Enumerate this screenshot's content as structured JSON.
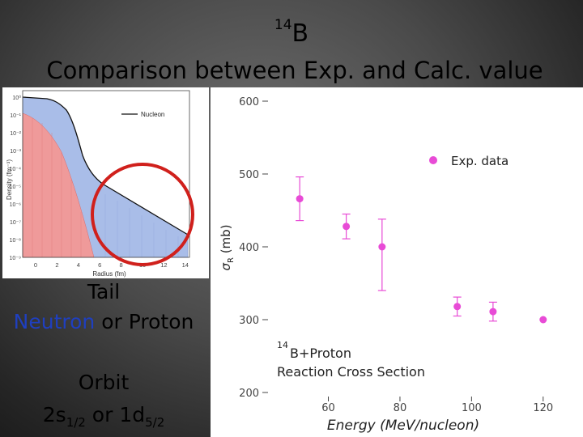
{
  "slide": {
    "isotope_mass": "14",
    "isotope_symbol": "B",
    "title": "Comparison between Exp. and Calc. value",
    "tail_title": "Tail",
    "tail_neutron": "Neutron",
    "tail_or": " or ",
    "tail_proton": "Proton",
    "orbit_title": "Orbit",
    "orbit_2s_main": "2s",
    "orbit_2s_sub": "1/2",
    "orbit_or": " or ",
    "orbit_1d_main": "1d",
    "orbit_1d_sub": "5/2"
  },
  "density_plot": {
    "xlabel": "Radius (fm)",
    "ylabel": "Density (fm⁻³)",
    "legend": "Nucleon",
    "x_ticks": [
      "0",
      "2",
      "4",
      "6",
      "8",
      "10",
      "12",
      "14"
    ],
    "y_ticks": [
      "10⁰",
      "10⁻¹",
      "10⁻²",
      "10⁻³",
      "10⁻⁴",
      "10⁻⁵",
      "10⁻⁶",
      "10⁻⁷",
      "10⁻⁸",
      "10⁻⁹"
    ],
    "fill_colors": {
      "nucleon": "#a9bde8",
      "core": "#ef9a9a"
    },
    "highlight_color": "#d0201c"
  },
  "chart_data": {
    "type": "scatter",
    "ylabel_symbol": "σ",
    "ylabel_sub": "R",
    "ylabel_unit": " (mb)",
    "xlabel": "Energy (MeV/nucleon)",
    "ylim": [
      200,
      600
    ],
    "xlim": [
      35,
      130
    ],
    "x_ticks": [
      60,
      80,
      100,
      120
    ],
    "y_ticks": [
      200,
      300,
      400,
      500,
      600
    ],
    "legend": "Exp. data",
    "annotation_mass": "14",
    "annotation_line1": "B+Proton",
    "annotation_line2": "Reaction Cross Section",
    "color": "#e84bd6",
    "series": [
      {
        "name": "Exp. data",
        "x": [
          52,
          65,
          75,
          96,
          106,
          120
        ],
        "y": [
          466,
          428,
          400,
          318,
          311,
          300
        ],
        "err_low": [
          30,
          17,
          60,
          13,
          13,
          0
        ],
        "err_high": [
          30,
          17,
          38,
          13,
          13,
          0
        ]
      }
    ]
  }
}
